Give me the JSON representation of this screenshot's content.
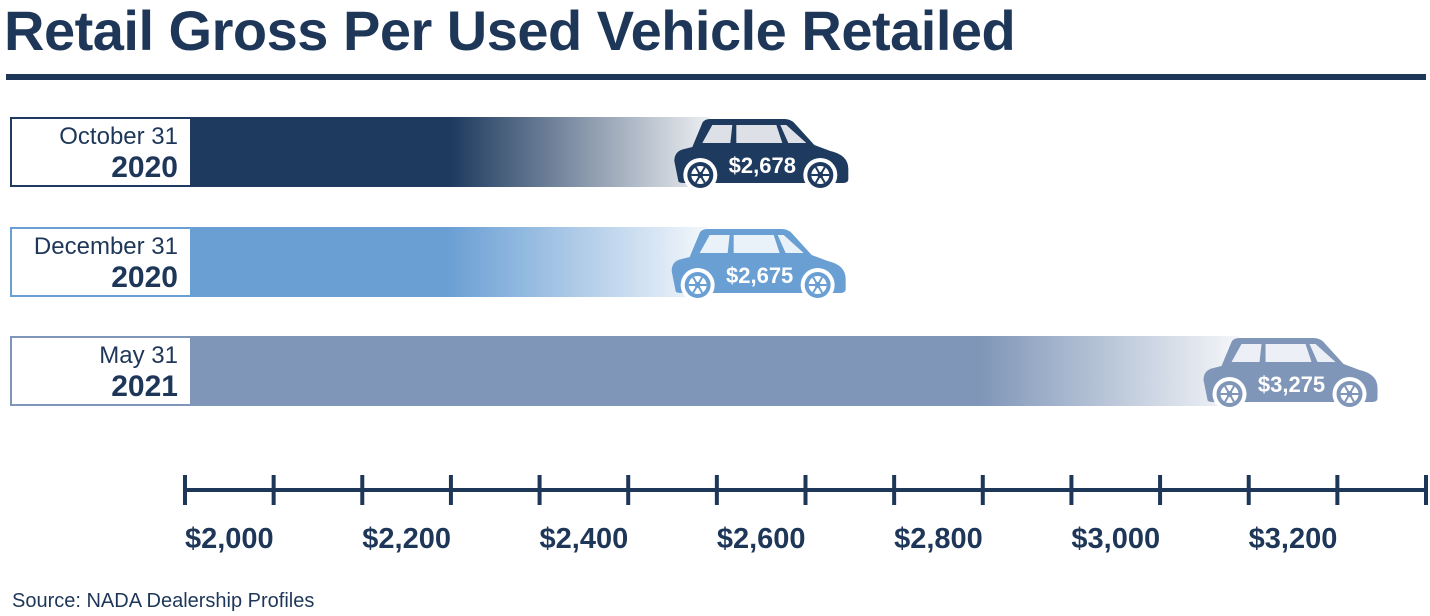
{
  "chart_data": {
    "type": "bar",
    "orientation": "horizontal",
    "title": "Retail Gross Per Used Vehicle Retailed",
    "categories": [
      {
        "line1": "October 31",
        "line2": "2020"
      },
      {
        "line1": "December 31",
        "line2": "2020"
      },
      {
        "line1": "May 31",
        "line2": "2021"
      }
    ],
    "values": [
      2678,
      2675,
      3275
    ],
    "value_labels": [
      "$2,678",
      "$2,675",
      "$3,275"
    ],
    "colors": [
      "#1e3a5f",
      "#6a9fd4",
      "#7f96b8"
    ],
    "xlim": [
      1950,
      3350
    ],
    "x_ticks": [
      1950,
      2050,
      2150,
      2250,
      2350,
      2450,
      2550,
      2650,
      2750,
      2850,
      2950,
      3050,
      3150,
      3250,
      3350
    ],
    "x_tick_labels": [
      {
        "value": 2000,
        "label": "$2,000"
      },
      {
        "value": 2200,
        "label": "$2,200"
      },
      {
        "value": 2400,
        "label": "$2,400"
      },
      {
        "value": 2600,
        "label": "$2,600"
      },
      {
        "value": 2800,
        "label": "$2,800"
      },
      {
        "value": 3000,
        "label": "$3,000"
      },
      {
        "value": 3200,
        "label": "$3,200"
      }
    ],
    "source": "Source:  NADA Dealership Profiles"
  }
}
